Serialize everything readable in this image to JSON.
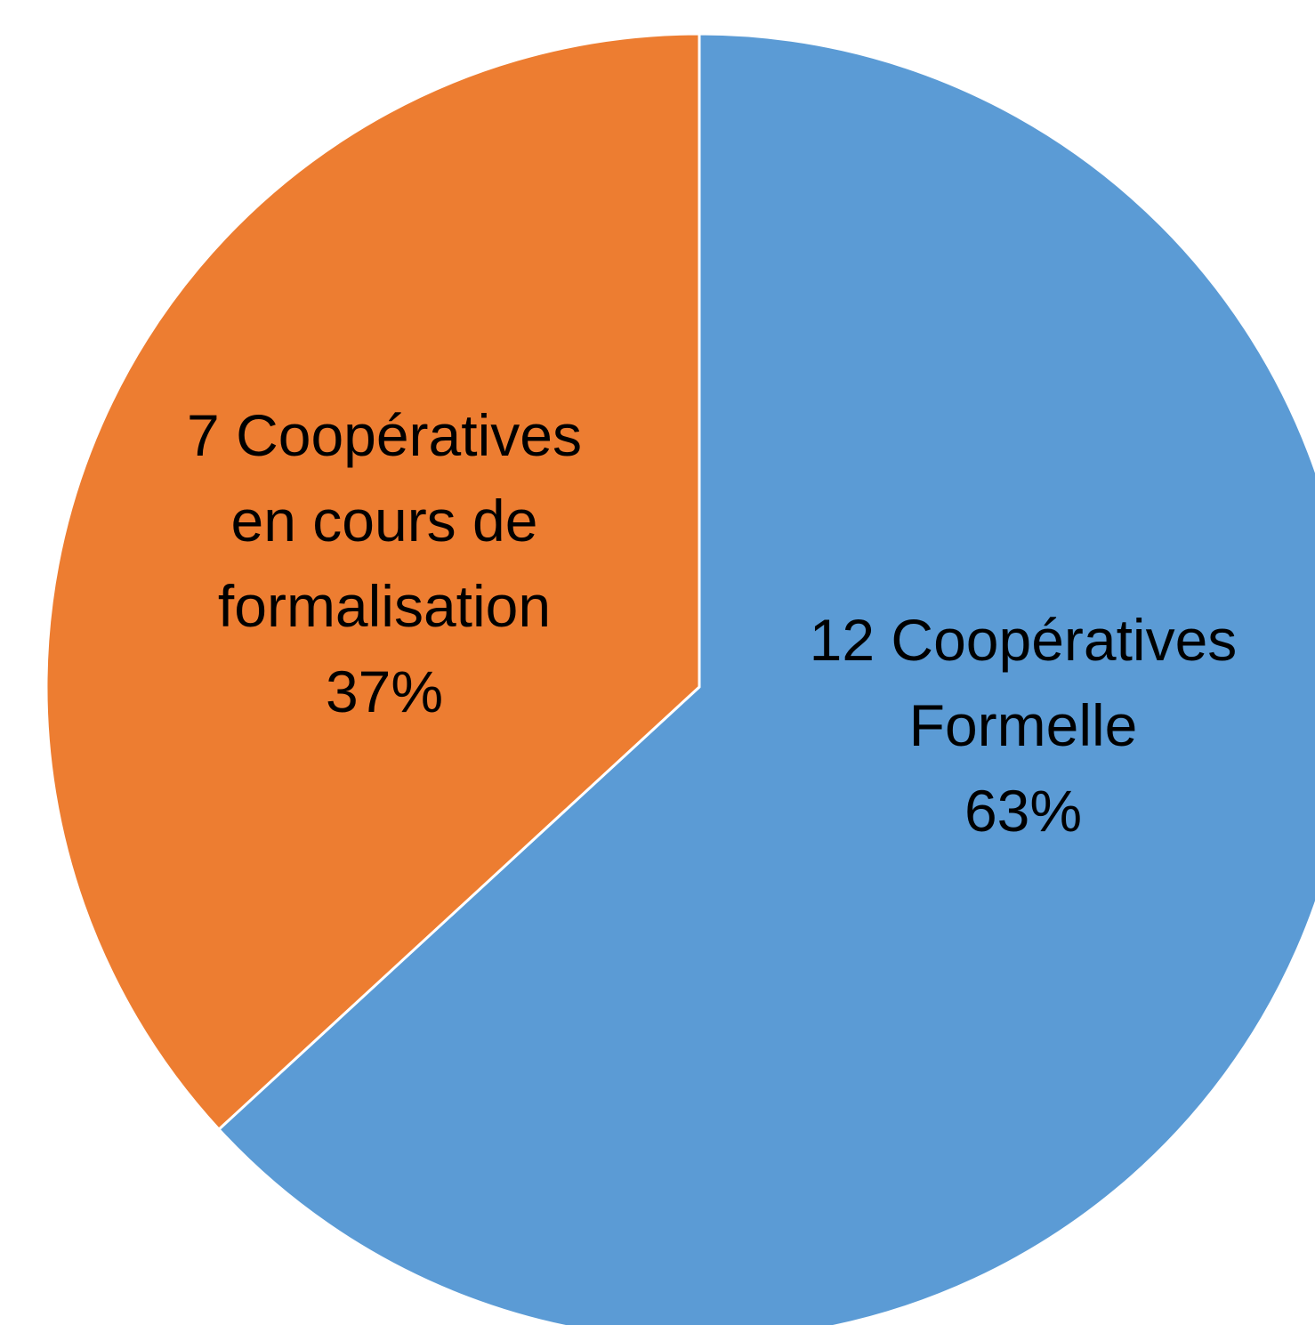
{
  "chart_data": {
    "type": "pie",
    "categories": [
      "12 Coopératives Formelle",
      "7 Coopératives en cours de formalisation"
    ],
    "values": [
      12,
      7
    ],
    "percentages": [
      63,
      37
    ],
    "colors": [
      "#5B9BD5",
      "#ED7D31"
    ],
    "slices": [
      {
        "label_lines": [
          "12 Coopératives",
          "Formelle",
          "63%"
        ]
      },
      {
        "label_lines": [
          "7 Coopératives",
          "en cours de",
          "formalisation",
          "37%"
        ]
      }
    ]
  }
}
